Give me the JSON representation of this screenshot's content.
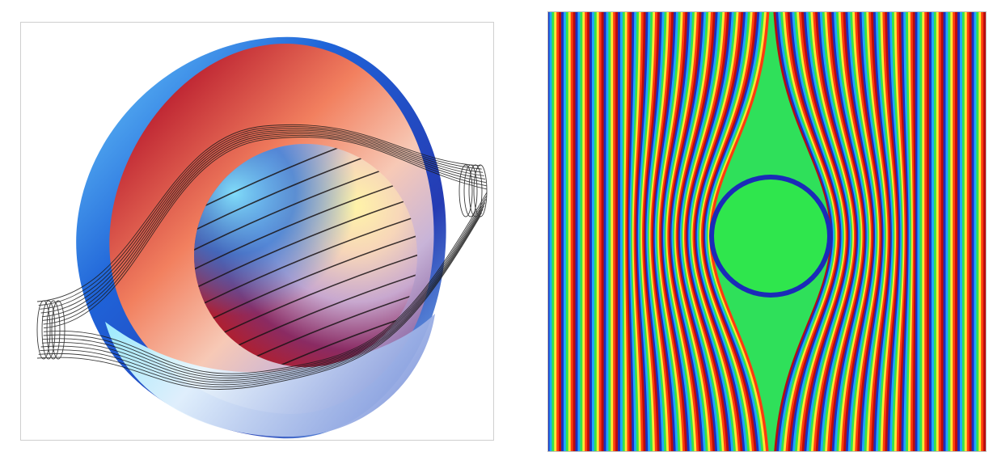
{
  "figure": {
    "left_panel": {
      "subject": "cloak-shell-3d"
    },
    "right_panel": {
      "subject": "wave-field-2d",
      "colors": {
        "field_colormap": [
          "#1d2fbf",
          "#1fa6ff",
          "#34e34a",
          "#ffe733",
          "#ff3b10",
          "#b80d0d"
        ],
        "object_fill": "#2fe64d"
      }
    }
  }
}
